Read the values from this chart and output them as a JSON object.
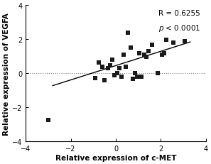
{
  "scatter_x": [
    -3.0,
    -0.9,
    -0.75,
    -0.6,
    -0.5,
    -0.35,
    -0.25,
    -0.15,
    -0.05,
    0.05,
    0.15,
    0.25,
    0.35,
    0.45,
    0.55,
    0.65,
    0.75,
    0.85,
    0.95,
    1.05,
    1.15,
    1.25,
    1.35,
    1.45,
    1.6,
    1.85,
    2.05,
    2.15,
    2.25,
    2.55,
    3.05
  ],
  "scatter_y": [
    -2.75,
    -0.3,
    0.65,
    0.38,
    -0.42,
    0.28,
    0.48,
    0.78,
    -0.12,
    0.02,
    0.28,
    -0.22,
    1.08,
    0.38,
    2.38,
    1.5,
    -0.32,
    0.02,
    -0.22,
    1.18,
    -0.22,
    1.08,
    0.98,
    1.28,
    1.68,
    0.02,
    1.08,
    1.18,
    1.98,
    1.78,
    1.88
  ],
  "line_x_start": -2.8,
  "line_x_end": 3.3,
  "line_slope": 0.42,
  "line_intercept": 0.45,
  "xlabel": "Relative expression of c-MET",
  "ylabel": "Relative expression of VEGFA",
  "annotation_R": "R = 0.6255",
  "annotation_p": "p < 0.0001",
  "xlim": [
    -4,
    4
  ],
  "ylim": [
    -4,
    4
  ],
  "xticks": [
    -4,
    -2,
    0,
    2,
    4
  ],
  "yticks": [
    -4,
    -2,
    0,
    2,
    4
  ],
  "marker_color": "#1a1a1a",
  "line_color": "#000000",
  "dot_line_color": "#888888",
  "background_color": "#ffffff",
  "tick_fontsize": 7,
  "label_fontsize": 7.5,
  "annotation_fontsize": 7.5
}
